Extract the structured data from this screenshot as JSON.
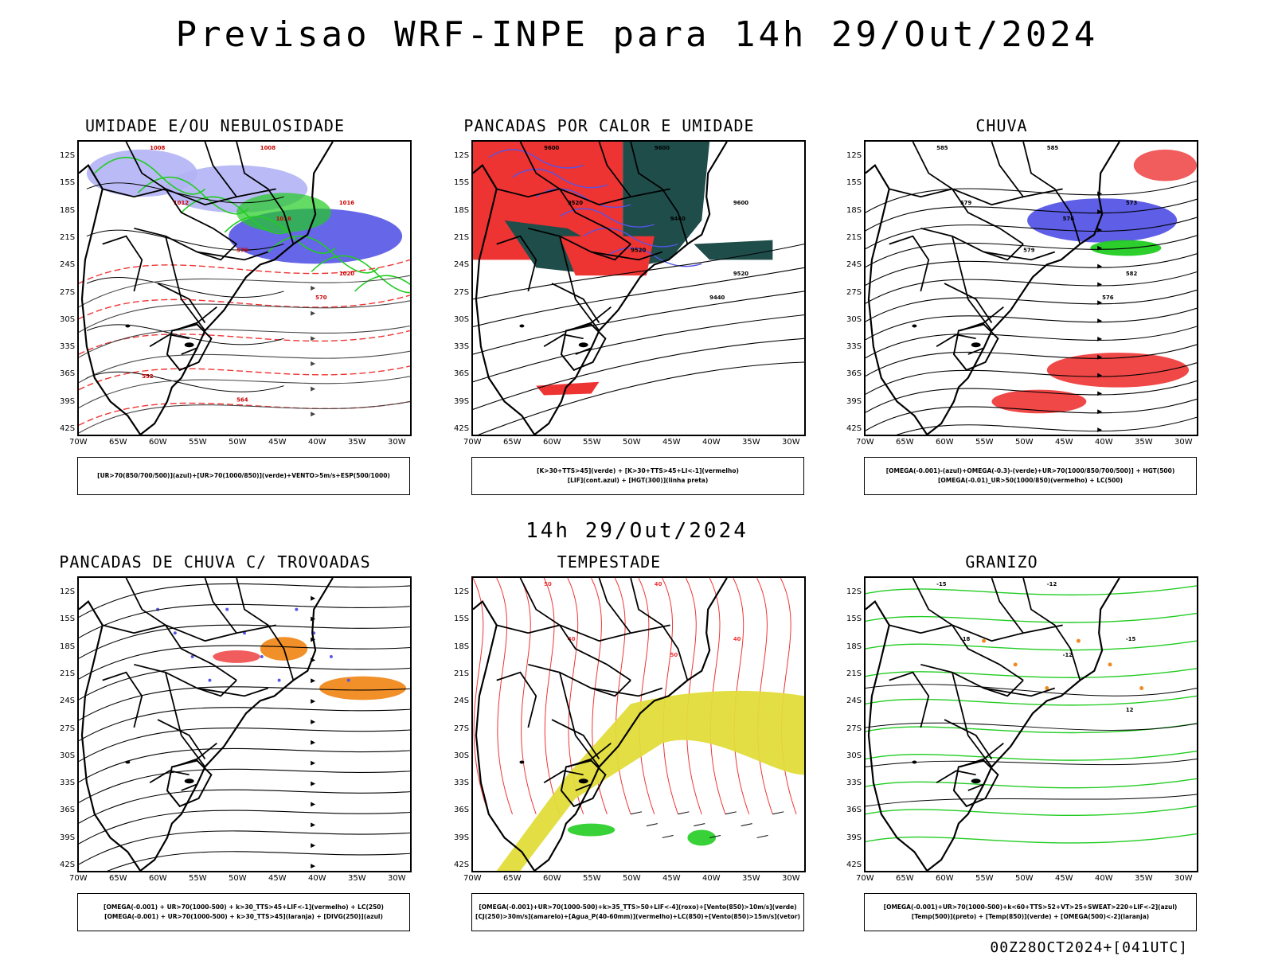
{
  "main_title": "Previsao WRF-INPE  para 14h 29/Out/2024",
  "mid_title": "14h 29/Out/2024",
  "footer": "00Z28OCT2024+[041UTC]",
  "y_labels": [
    "12S",
    "15S",
    "18S",
    "21S",
    "24S",
    "27S",
    "30S",
    "33S",
    "36S",
    "39S",
    "42S"
  ],
  "x_labels": [
    "70W",
    "65W",
    "60W",
    "55W",
    "50W",
    "45W",
    "40W",
    "35W",
    "30W"
  ],
  "panels": [
    {
      "title": "UMIDADE E/OU NEBULOSIDADE",
      "legend": [
        "[UR>70(850/700/500)](azul)+[UR>70(1000/850)](verde)+VENTO>5m/s+ESP(500/1000)"
      ],
      "contour_labels": [
        "1008",
        "1008",
        "1012",
        "1016",
        "1016",
        "1020",
        "576",
        "570",
        "552",
        "564"
      ]
    },
    {
      "title": "PANCADAS POR CALOR E UMIDADE",
      "legend": [
        "[K>30+TTS>45](verde) + [K>30+TTS>45+LI<-1](vermelho)",
        "[LIF](cont.azul) + [HGT(300)](linha preta)"
      ],
      "contour_labels": [
        "9600",
        "9600",
        "9520",
        "9440",
        "9600",
        "9520",
        "9520",
        "9440"
      ]
    },
    {
      "title": "CHUVA",
      "legend": [
        "[OMEGA(-0.001)-(azul)+OMEGA(-0.3)-(verde)+UR>70(1000/850/700/500)] + HGT(500)",
        "[OMEGA(-0.01)_UR>50(1000/850)(vermelho) + LC(500)"
      ],
      "contour_labels": [
        "585",
        "585",
        "579",
        "576",
        "573",
        "582",
        "579",
        "576"
      ]
    },
    {
      "title": "PANCADAS DE CHUVA C/ TROVOADAS",
      "legend": [
        "[OMEGA(-0.001) + UR>70(1000-500) + k>30_TTS>45+LIF<-1](vermelho) + LC(250)",
        "[OMEGA(-0.001) + UR>70(1000-500) + k>30_TTS>45](laranja) + [DIVG(250)](azul)"
      ],
      "contour_labels": []
    },
    {
      "title": "TEMPESTADE",
      "legend": [
        "[OMEGA(-0.001)+UR>70(1000-500)+k>35_TTS>50+LIF<-4](roxo)+[Vento(850)>10m/s](verde)",
        "[CJ(250)>30m/s](amarelo)+[Agua_P(40-60mm)](vermelho)+LC(850)+[Vento(850)>15m/s](vetor)"
      ],
      "contour_labels": [
        "50",
        "40",
        "40",
        "50",
        "40"
      ]
    },
    {
      "title": "GRANIZO",
      "legend": [
        "[OMEGA(-0.001)+UR>70(1000-500)+k<60+TTS>52+VT>25+SWEAT>220+LIF<-2](azul)",
        "[Temp(500)](preto) + [Temp(850)](verde) + [OMEGA(500)<-2](laranja)"
      ],
      "contour_labels": [
        "-15",
        "-12",
        "-18",
        "-12",
        "-15",
        "12"
      ]
    }
  ],
  "colors": {
    "blue_light": "#b3b3f5",
    "blue": "#5555e6",
    "green": "#22cc22",
    "red": "#ee3333",
    "dark_teal": "#1e4d4a",
    "yellow": "#e2dc3a",
    "orange": "#f08a1e"
  }
}
